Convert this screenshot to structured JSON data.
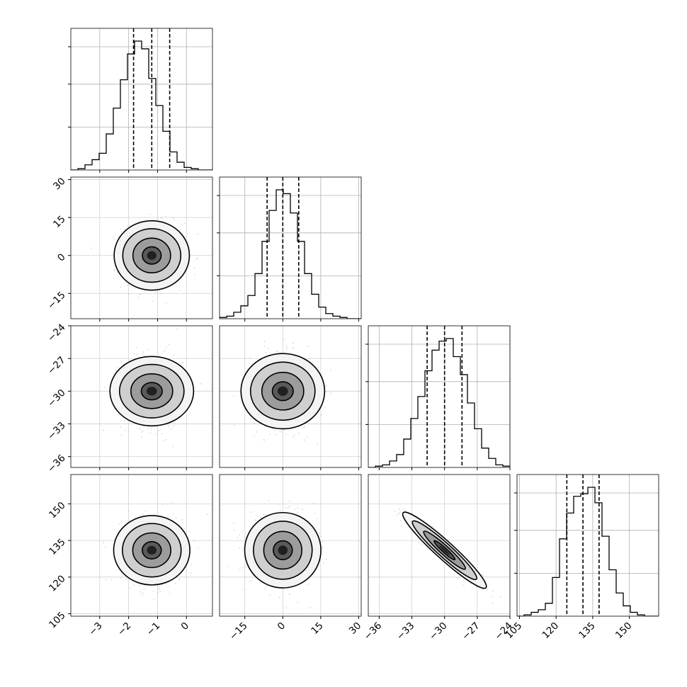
{
  "chart_data": {
    "type": "corner",
    "grid": true,
    "parameters": [
      {
        "range": [
          -4,
          0.9
        ],
        "ticks": [
          -3,
          -2,
          -1,
          0
        ],
        "tick_labels": [
          "−3",
          "−2",
          "−1",
          "0"
        ],
        "quantiles": [
          -1.83,
          -1.2,
          -0.58
        ],
        "mean": -1.2,
        "sd": 0.5,
        "hist": [
          0.0,
          0.01,
          0.04,
          0.08,
          0.13,
          0.28,
          0.48,
          0.7,
          0.9,
          1.0,
          0.94,
          0.71,
          0.5,
          0.3,
          0.14,
          0.06,
          0.02,
          0.01,
          0.0,
          0.0
        ]
      },
      {
        "range": [
          -25,
          31
        ],
        "ticks": [
          -15,
          0,
          15,
          30
        ],
        "tick_labels": [
          "−15",
          "0",
          "15",
          "30"
        ],
        "quantiles": [
          -6.2,
          0,
          6.3
        ],
        "mean": 0.0,
        "sd": 6.2,
        "hist": [
          0.01,
          0.02,
          0.05,
          0.1,
          0.18,
          0.35,
          0.6,
          0.84,
          1.0,
          0.97,
          0.82,
          0.6,
          0.35,
          0.19,
          0.09,
          0.04,
          0.02,
          0.01,
          0.0,
          0.0
        ]
      },
      {
        "range": [
          -37,
          -24
        ],
        "ticks": [
          -36,
          -33,
          -30,
          -27,
          -24
        ],
        "tick_labels": [
          "−36",
          "−33",
          "−30",
          "−27",
          "−24"
        ],
        "quantiles": [
          -31.6,
          -30.0,
          -28.4
        ],
        "mean": -30.0,
        "sd": 1.6,
        "hist": [
          0.0,
          0.01,
          0.02,
          0.05,
          0.1,
          0.22,
          0.38,
          0.55,
          0.75,
          0.91,
          0.98,
          1.0,
          0.86,
          0.72,
          0.5,
          0.3,
          0.15,
          0.07,
          0.02,
          0.01
        ]
      },
      {
        "range": [
          104,
          162
        ],
        "ticks": [
          105,
          120,
          135,
          150
        ],
        "tick_labels": [
          "105",
          "120",
          "135",
          "150"
        ],
        "quantiles": [
          124.4,
          131.0,
          137.6
        ],
        "mean": 131.0,
        "sd": 6.5,
        "hist": [
          0.0,
          0.01,
          0.03,
          0.05,
          0.1,
          0.3,
          0.6,
          0.8,
          0.93,
          0.95,
          1.0,
          0.88,
          0.62,
          0.36,
          0.18,
          0.08,
          0.03,
          0.01,
          0.0,
          0.0
        ]
      }
    ],
    "correlations": [
      {
        "row": 1,
        "col": 0,
        "rho": 0.0
      },
      {
        "row": 2,
        "col": 0,
        "rho": 0.0
      },
      {
        "row": 2,
        "col": 1,
        "rho": 0.0
      },
      {
        "row": 3,
        "col": 0,
        "rho": 0.0
      },
      {
        "row": 3,
        "col": 1,
        "rho": 0.0
      },
      {
        "row": 3,
        "col": 2,
        "rho": -0.95
      }
    ]
  }
}
